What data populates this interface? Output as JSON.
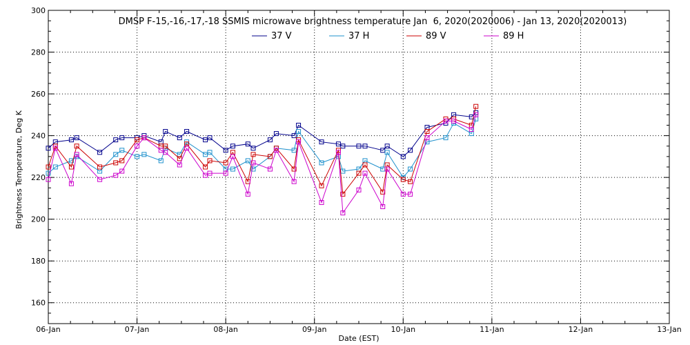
{
  "chart_data": {
    "type": "line",
    "title": "DMSP F-15,-16,-17,-18 SSMIS microwave brightness temperature Jan  6, 2020(2020006) - Jan 13, 2020(2020013)",
    "xlabel": "Date (EST)",
    "ylabel": "Brightness Temperature, Deg K",
    "xlim": [
      0,
      7
    ],
    "ylim": [
      150,
      300
    ],
    "x_ticks": [
      {
        "label": "06-Jan",
        "value": 0
      },
      {
        "label": "07-Jan",
        "value": 1
      },
      {
        "label": "08-Jan",
        "value": 2
      },
      {
        "label": "09-Jan",
        "value": 3
      },
      {
        "label": "10-Jan",
        "value": 4
      },
      {
        "label": "11-Jan",
        "value": 5
      },
      {
        "label": "12-Jan",
        "value": 6
      },
      {
        "label": "13-Jan",
        "value": 7
      }
    ],
    "y_ticks": [
      160,
      180,
      200,
      220,
      240,
      260,
      280,
      300
    ],
    "grid": true,
    "legend_position": "top-center",
    "series": [
      {
        "name": "37 V",
        "color": "#00008b",
        "x": [
          0.0,
          0.08,
          0.26,
          0.32,
          0.58,
          0.76,
          0.83,
          1.0,
          1.08,
          1.27,
          1.32,
          1.48,
          1.56,
          1.77,
          1.82,
          2.0,
          2.08,
          2.25,
          2.31,
          2.5,
          2.57,
          2.77,
          2.82,
          3.08,
          3.27,
          3.32,
          3.5,
          3.57,
          3.77,
          3.82,
          4.0,
          4.08,
          4.27,
          4.48,
          4.57,
          4.77,
          4.82
        ],
        "y": [
          234,
          237,
          238,
          239,
          232,
          238,
          239,
          239,
          240,
          237,
          242,
          239,
          242,
          238,
          239,
          233,
          235,
          236,
          234,
          238,
          241,
          240,
          245,
          237,
          236,
          235,
          235,
          235,
          233,
          235,
          230,
          233,
          244,
          246,
          250,
          249,
          251
        ]
      },
      {
        "name": "37 H",
        "color": "#1e90cc",
        "x": [
          0.0,
          0.08,
          0.26,
          0.32,
          0.58,
          0.76,
          0.83,
          1.0,
          1.08,
          1.27,
          1.32,
          1.48,
          1.56,
          1.77,
          1.82,
          2.0,
          2.08,
          2.25,
          2.31,
          2.5,
          2.57,
          2.77,
          2.82,
          3.08,
          3.27,
          3.32,
          3.5,
          3.57,
          3.77,
          3.82,
          4.0,
          4.08,
          4.27,
          4.48,
          4.57,
          4.77,
          4.82
        ],
        "y": [
          222,
          225,
          228,
          230,
          223,
          231,
          233,
          230,
          231,
          228,
          234,
          231,
          237,
          231,
          232,
          224,
          224,
          228,
          224,
          230,
          234,
          233,
          242,
          227,
          230,
          223,
          224,
          228,
          224,
          232,
          220,
          224,
          237,
          239,
          246,
          241,
          248
        ]
      },
      {
        "name": "89 V",
        "color": "#cc0000",
        "x": [
          0.0,
          0.08,
          0.26,
          0.32,
          0.58,
          0.76,
          0.83,
          1.0,
          1.08,
          1.27,
          1.32,
          1.48,
          1.56,
          1.77,
          1.82,
          2.0,
          2.08,
          2.25,
          2.31,
          2.5,
          2.57,
          2.77,
          2.82,
          3.08,
          3.27,
          3.32,
          3.5,
          3.57,
          3.77,
          3.82,
          4.0,
          4.08,
          4.27,
          4.48,
          4.57,
          4.77,
          4.82
        ],
        "y": [
          225,
          235,
          225,
          235,
          225,
          227,
          228,
          238,
          239,
          235,
          235,
          229,
          236,
          225,
          228,
          227,
          232,
          218,
          231,
          230,
          234,
          224,
          238,
          216,
          233,
          212,
          222,
          226,
          213,
          226,
          219,
          218,
          242,
          248,
          248,
          245,
          254
        ]
      },
      {
        "name": "89 H",
        "color": "#cc00cc",
        "x": [
          0.0,
          0.08,
          0.26,
          0.32,
          0.58,
          0.76,
          0.83,
          1.0,
          1.08,
          1.27,
          1.32,
          1.48,
          1.56,
          1.77,
          1.82,
          2.0,
          2.08,
          2.25,
          2.31,
          2.5,
          2.57,
          2.77,
          2.82,
          3.08,
          3.27,
          3.32,
          3.5,
          3.57,
          3.77,
          3.82,
          4.0,
          4.08,
          4.27,
          4.48,
          4.57,
          4.77,
          4.82
        ],
        "y": [
          219,
          234,
          217,
          231,
          219,
          221,
          223,
          235,
          239,
          233,
          232,
          226,
          234,
          221,
          222,
          222,
          230,
          212,
          227,
          224,
          233,
          218,
          237,
          208,
          232,
          203,
          214,
          222,
          206,
          224,
          212,
          212,
          239,
          247,
          247,
          243,
          250
        ]
      }
    ]
  }
}
